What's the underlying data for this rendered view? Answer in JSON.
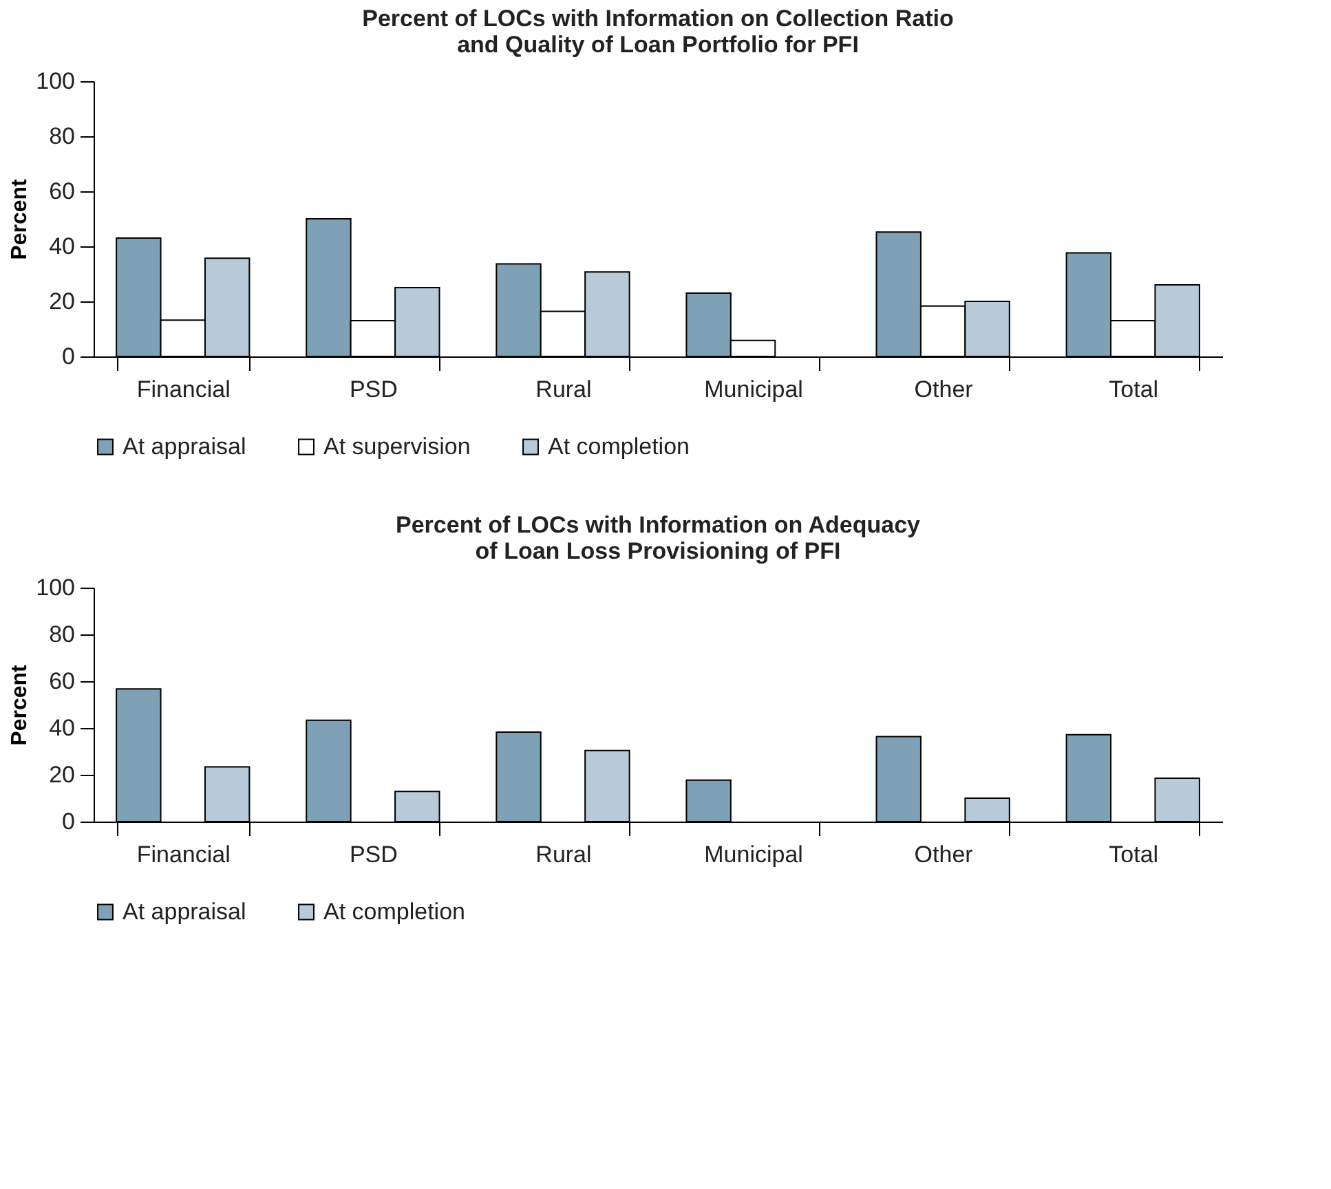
{
  "chart_data": [
    {
      "type": "bar",
      "title": "Percent of LOCs with Information on Collection Ratio\nand Quality of Loan Portfolio for PFI",
      "ylabel": "Percent",
      "categories": [
        "Financial",
        "PSD",
        "Rural",
        "Municipal",
        "Other",
        "Total"
      ],
      "series": [
        {
          "name": "At appraisal",
          "color": "#7fa1b5",
          "values": [
            43,
            50,
            33.6,
            23,
            45.2,
            37.6
          ]
        },
        {
          "name": "At supervision",
          "color": "#ffffff",
          "values": [
            13.2,
            13,
            16.4,
            5.8,
            18.3,
            13
          ]
        },
        {
          "name": "At completion",
          "color": "#b8cad8",
          "values": [
            35.7,
            25,
            30.7,
            null,
            20,
            26
          ]
        }
      ],
      "ylim": [
        0,
        100
      ],
      "yticks": [
        0,
        20,
        40,
        60,
        80,
        100
      ],
      "grid": false,
      "legend": "bottom"
    },
    {
      "type": "bar",
      "title": "Percent of LOCs with Information on Adequacy\nof Loan Loss Provisioning of PFI",
      "ylabel": "Percent",
      "categories": [
        "Financial",
        "PSD",
        "Rural",
        "Municipal",
        "Other",
        "Total"
      ],
      "series": [
        {
          "name": "At appraisal",
          "color": "#7fa1b5",
          "values": [
            56.7,
            43.3,
            38.2,
            17.7,
            36.3,
            37.1
          ]
        },
        {
          "name": "At completion",
          "color": "#b8cad8",
          "values": [
            23.4,
            12.9,
            30.4,
            null,
            10,
            18.5
          ]
        }
      ],
      "ylim": [
        0,
        100
      ],
      "yticks": [
        0,
        20,
        40,
        60,
        80,
        100
      ],
      "grid": false,
      "legend": "bottom"
    }
  ]
}
